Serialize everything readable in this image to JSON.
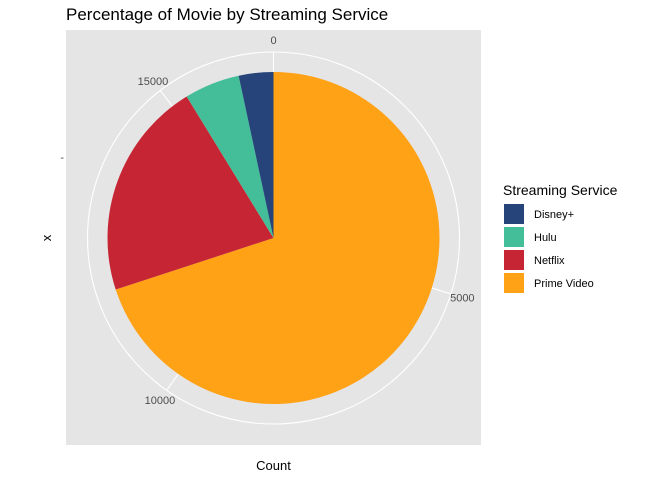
{
  "chart_data": {
    "type": "pie",
    "title": "Percentage of Movie by Streaming Service",
    "xlabel": "Count",
    "ylabel": "x",
    "y_tick_label": "-",
    "angle_axis_ticks": [
      0,
      5000,
      10000,
      15000
    ],
    "angle_axis_ticklabels": [
      "0",
      "5000",
      "10000",
      "15000"
    ],
    "total": 16744,
    "legend": {
      "title": "Streaming Service",
      "placement": "right"
    },
    "slices": [
      {
        "name": "Disney+",
        "value": 564,
        "color": "#26437A"
      },
      {
        "name": "Hulu",
        "value": 903,
        "color": "#44BE98"
      },
      {
        "name": "Netflix",
        "value": 3560,
        "color": "#C62634"
      },
      {
        "name": "Prime Video",
        "value": 11717,
        "color": "#FFA216"
      }
    ],
    "panel_background": "#E5E5E5",
    "grid": true,
    "grid_color": "#FFFFFF"
  }
}
